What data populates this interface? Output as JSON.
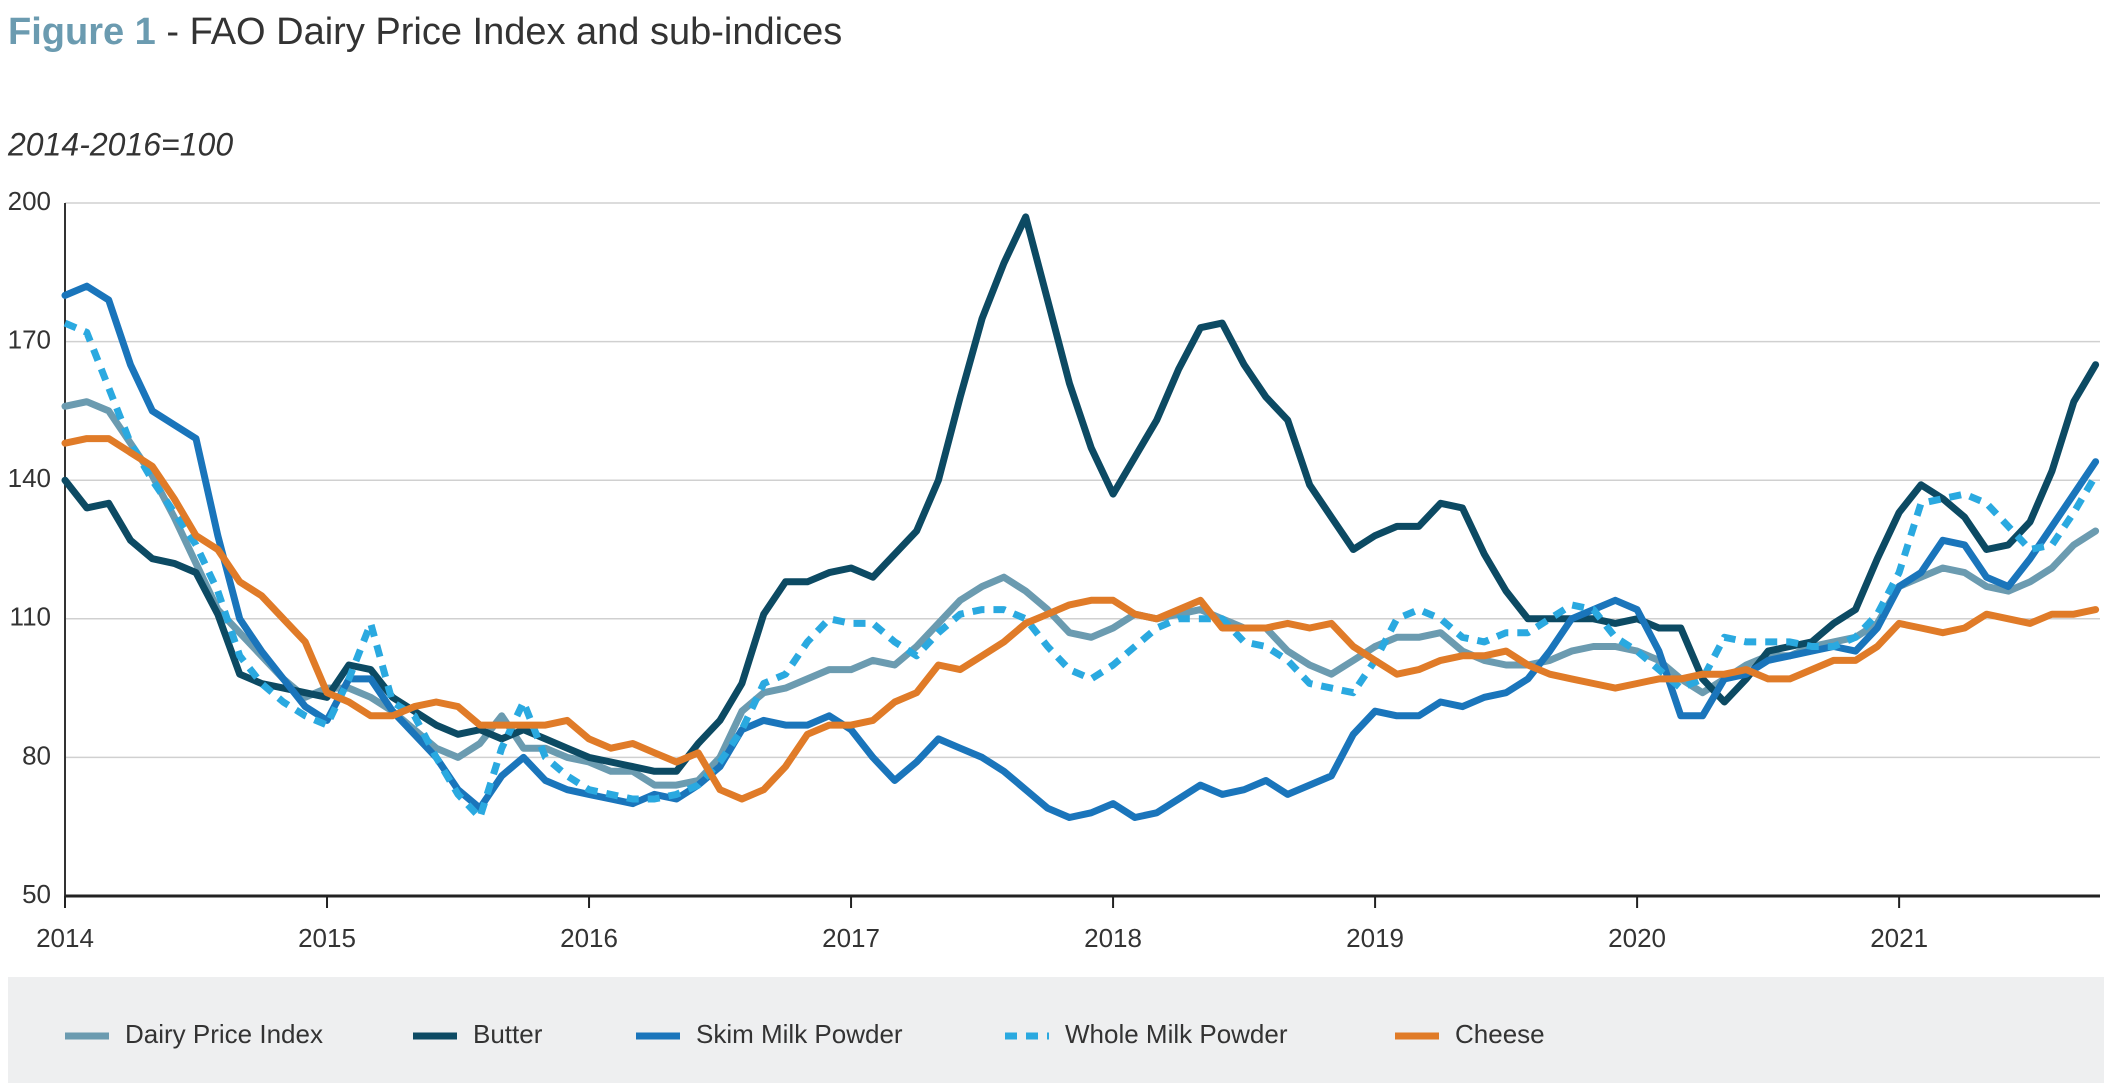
{
  "chart_data": {
    "type": "line",
    "title_label": "Figure 1",
    "title": "- FAO Dairy Price Index and sub-indices",
    "subtitle": "2014-2016=100",
    "categories": [
      "2014",
      null,
      null,
      null,
      null,
      null,
      null,
      null,
      null,
      null,
      null,
      null,
      "2015",
      null,
      null,
      null,
      null,
      null,
      null,
      null,
      null,
      null,
      null,
      null,
      "2016",
      null,
      null,
      null,
      null,
      null,
      null,
      null,
      null,
      null,
      null,
      null,
      "2017",
      null,
      null,
      null,
      null,
      null,
      null,
      null,
      null,
      null,
      null,
      null,
      "2018",
      null,
      null,
      null,
      null,
      null,
      null,
      null,
      null,
      null,
      null,
      null,
      "2019",
      null,
      null,
      null,
      null,
      null,
      null,
      null,
      null,
      null,
      null,
      null,
      "2020",
      null,
      null,
      null,
      null,
      null,
      null,
      null,
      null,
      null,
      null,
      null,
      "2021",
      null,
      null,
      null,
      null,
      null,
      null,
      null,
      null,
      null
    ],
    "ylim": [
      50,
      200
    ],
    "yticks": [
      50,
      80,
      110,
      140,
      170,
      200
    ],
    "grid": true,
    "series": [
      {
        "name": "Dairy Price Index",
        "color": "#6b9bb0",
        "dashed": false,
        "values": [
          156,
          157,
          155,
          148,
          141,
          132,
          122,
          112,
          107,
          102,
          97,
          93,
          95,
          95,
          93,
          90,
          86,
          82,
          80,
          83,
          89,
          82,
          82,
          80,
          79,
          77,
          77,
          74,
          74,
          75,
          80,
          90,
          94,
          95,
          97,
          99,
          99,
          101,
          100,
          104,
          109,
          114,
          117,
          119,
          116,
          112,
          107,
          106,
          108,
          111,
          110,
          111,
          112,
          110,
          108,
          108,
          103,
          100,
          98,
          101,
          104,
          106,
          106,
          107,
          103,
          101,
          100,
          100,
          101,
          103,
          104,
          104,
          103,
          101,
          97,
          94,
          97,
          100,
          102,
          102,
          104,
          105,
          106,
          109,
          117,
          119,
          121,
          120,
          117,
          116,
          118,
          121,
          126,
          129
        ]
      },
      {
        "name": "Butter",
        "color": "#0c4a63",
        "dashed": false,
        "values": [
          140,
          134,
          135,
          127,
          123,
          122,
          120,
          111,
          98,
          96,
          95,
          94,
          93,
          100,
          99,
          93,
          90,
          87,
          85,
          86,
          84,
          86,
          84,
          82,
          80,
          79,
          78,
          77,
          77,
          83,
          88,
          96,
          111,
          118,
          118,
          120,
          121,
          119,
          124,
          129,
          140,
          158,
          175,
          187,
          197,
          179,
          161,
          147,
          137,
          145,
          153,
          164,
          173,
          174,
          165,
          158,
          153,
          139,
          132,
          125,
          128,
          130,
          130,
          135,
          134,
          124,
          116,
          110,
          110,
          110,
          110,
          109,
          110,
          108,
          108,
          97,
          92,
          97,
          103,
          104,
          105,
          109,
          112,
          123,
          133,
          139,
          136,
          132,
          125,
          126,
          131,
          142,
          157,
          165
        ]
      },
      {
        "name": "Skim Milk Powder",
        "color": "#1a75bb",
        "dashed": false,
        "values": [
          180,
          182,
          179,
          165,
          155,
          152,
          149,
          128,
          110,
          103,
          97,
          91,
          88,
          97,
          97,
          90,
          85,
          80,
          73,
          69,
          76,
          80,
          75,
          73,
          72,
          71,
          70,
          72,
          71,
          74,
          78,
          86,
          88,
          87,
          87,
          89,
          86,
          80,
          75,
          79,
          84,
          82,
          80,
          77,
          73,
          69,
          67,
          68,
          70,
          67,
          68,
          71,
          74,
          72,
          73,
          75,
          72,
          74,
          76,
          85,
          90,
          89,
          89,
          92,
          91,
          93,
          94,
          97,
          103,
          110,
          112,
          114,
          112,
          103,
          89,
          89,
          97,
          98,
          101,
          102,
          103,
          104,
          103,
          108,
          117,
          120,
          127,
          126,
          119,
          117,
          123,
          130,
          137,
          144
        ]
      },
      {
        "name": "Whole Milk Powder",
        "color": "#2aa9e0",
        "dashed": true,
        "values": [
          174,
          172,
          160,
          148,
          140,
          133,
          126,
          116,
          102,
          96,
          92,
          89,
          87,
          97,
          109,
          92,
          89,
          80,
          72,
          67,
          82,
          92,
          80,
          76,
          73,
          72,
          71,
          71,
          72,
          74,
          79,
          86,
          96,
          98,
          105,
          110,
          109,
          109,
          105,
          102,
          107,
          111,
          112,
          112,
          110,
          104,
          99,
          97,
          100,
          104,
          108,
          110,
          110,
          110,
          105,
          104,
          101,
          96,
          95,
          94,
          101,
          110,
          112,
          110,
          106,
          105,
          107,
          107,
          110,
          113,
          112,
          106,
          103,
          99,
          95,
          97,
          106,
          105,
          105,
          105,
          104,
          104,
          106,
          111,
          120,
          135,
          136,
          137,
          135,
          130,
          125,
          126,
          133,
          141
        ]
      },
      {
        "name": "Cheese",
        "color": "#e07b28",
        "dashed": false,
        "values": [
          148,
          149,
          149,
          146,
          143,
          136,
          128,
          125,
          118,
          115,
          110,
          105,
          94,
          92,
          89,
          89,
          91,
          92,
          91,
          87,
          87,
          87,
          87,
          88,
          84,
          82,
          83,
          81,
          79,
          81,
          73,
          71,
          73,
          78,
          85,
          87,
          87,
          88,
          92,
          94,
          100,
          99,
          102,
          105,
          109,
          111,
          113,
          114,
          114,
          111,
          110,
          112,
          114,
          108,
          108,
          108,
          109,
          108,
          109,
          104,
          101,
          98,
          99,
          101,
          102,
          102,
          103,
          100,
          98,
          97,
          96,
          95,
          96,
          97,
          97,
          98,
          98,
          99,
          97,
          97,
          99,
          101,
          101,
          104,
          109,
          108,
          107,
          108,
          111,
          110,
          109,
          111,
          111,
          112
        ]
      }
    ]
  }
}
